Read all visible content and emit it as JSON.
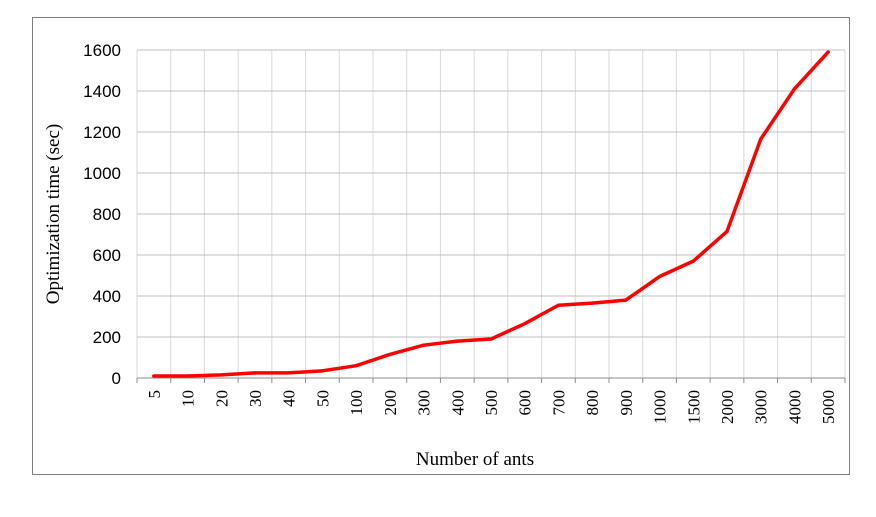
{
  "chart_data": {
    "type": "line",
    "xlabel": "Number of ants",
    "ylabel": "Optimization time (sec)",
    "categories": [
      "5",
      "10",
      "20",
      "30",
      "40",
      "50",
      "100",
      "200",
      "300",
      "400",
      "500",
      "600",
      "700",
      "800",
      "900",
      "1000",
      "1500",
      "2000",
      "3000",
      "4000",
      "5000"
    ],
    "series": [
      {
        "values": [
          10,
          10,
          15,
          25,
          25,
          35,
          60,
          115,
          160,
          180,
          190,
          265,
          355,
          365,
          380,
          495,
          570,
          715,
          1165,
          1410,
          1590
        ]
      }
    ],
    "ylim": [
      0,
      1600
    ],
    "yticks": [
      0,
      200,
      400,
      600,
      800,
      1000,
      1200,
      1400,
      1600
    ],
    "grid": "horizontal and vertical",
    "legend": "none",
    "line_color": "#ff0000"
  }
}
